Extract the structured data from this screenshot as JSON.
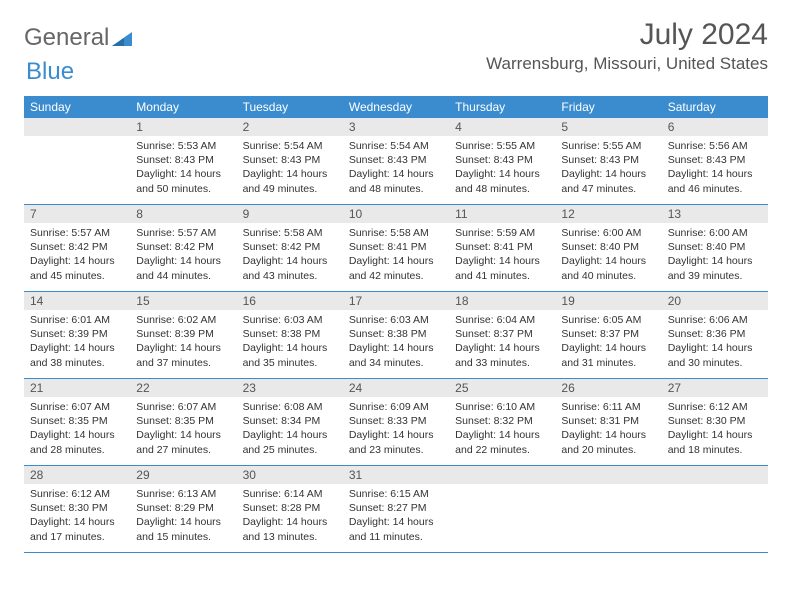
{
  "brand": {
    "part1": "General",
    "part2": "Blue"
  },
  "title": "July 2024",
  "location": "Warrensburg, Missouri, United States",
  "colors": {
    "accent": "#3a8ccf",
    "header_text": "#ffffff",
    "date_bar_bg": "#e9e9e9",
    "body_text": "#333333",
    "title_text": "#555555"
  },
  "day_names": [
    "Sunday",
    "Monday",
    "Tuesday",
    "Wednesday",
    "Thursday",
    "Friday",
    "Saturday"
  ],
  "weeks": [
    [
      null,
      {
        "d": "1",
        "sr": "5:53 AM",
        "ss": "8:43 PM",
        "dh": "14",
        "dm": "50"
      },
      {
        "d": "2",
        "sr": "5:54 AM",
        "ss": "8:43 PM",
        "dh": "14",
        "dm": "49"
      },
      {
        "d": "3",
        "sr": "5:54 AM",
        "ss": "8:43 PM",
        "dh": "14",
        "dm": "48"
      },
      {
        "d": "4",
        "sr": "5:55 AM",
        "ss": "8:43 PM",
        "dh": "14",
        "dm": "48"
      },
      {
        "d": "5",
        "sr": "5:55 AM",
        "ss": "8:43 PM",
        "dh": "14",
        "dm": "47"
      },
      {
        "d": "6",
        "sr": "5:56 AM",
        "ss": "8:43 PM",
        "dh": "14",
        "dm": "46"
      }
    ],
    [
      {
        "d": "7",
        "sr": "5:57 AM",
        "ss": "8:42 PM",
        "dh": "14",
        "dm": "45"
      },
      {
        "d": "8",
        "sr": "5:57 AM",
        "ss": "8:42 PM",
        "dh": "14",
        "dm": "44"
      },
      {
        "d": "9",
        "sr": "5:58 AM",
        "ss": "8:42 PM",
        "dh": "14",
        "dm": "43"
      },
      {
        "d": "10",
        "sr": "5:58 AM",
        "ss": "8:41 PM",
        "dh": "14",
        "dm": "42"
      },
      {
        "d": "11",
        "sr": "5:59 AM",
        "ss": "8:41 PM",
        "dh": "14",
        "dm": "41"
      },
      {
        "d": "12",
        "sr": "6:00 AM",
        "ss": "8:40 PM",
        "dh": "14",
        "dm": "40"
      },
      {
        "d": "13",
        "sr": "6:00 AM",
        "ss": "8:40 PM",
        "dh": "14",
        "dm": "39"
      }
    ],
    [
      {
        "d": "14",
        "sr": "6:01 AM",
        "ss": "8:39 PM",
        "dh": "14",
        "dm": "38"
      },
      {
        "d": "15",
        "sr": "6:02 AM",
        "ss": "8:39 PM",
        "dh": "14",
        "dm": "37"
      },
      {
        "d": "16",
        "sr": "6:03 AM",
        "ss": "8:38 PM",
        "dh": "14",
        "dm": "35"
      },
      {
        "d": "17",
        "sr": "6:03 AM",
        "ss": "8:38 PM",
        "dh": "14",
        "dm": "34"
      },
      {
        "d": "18",
        "sr": "6:04 AM",
        "ss": "8:37 PM",
        "dh": "14",
        "dm": "33"
      },
      {
        "d": "19",
        "sr": "6:05 AM",
        "ss": "8:37 PM",
        "dh": "14",
        "dm": "31"
      },
      {
        "d": "20",
        "sr": "6:06 AM",
        "ss": "8:36 PM",
        "dh": "14",
        "dm": "30"
      }
    ],
    [
      {
        "d": "21",
        "sr": "6:07 AM",
        "ss": "8:35 PM",
        "dh": "14",
        "dm": "28"
      },
      {
        "d": "22",
        "sr": "6:07 AM",
        "ss": "8:35 PM",
        "dh": "14",
        "dm": "27"
      },
      {
        "d": "23",
        "sr": "6:08 AM",
        "ss": "8:34 PM",
        "dh": "14",
        "dm": "25"
      },
      {
        "d": "24",
        "sr": "6:09 AM",
        "ss": "8:33 PM",
        "dh": "14",
        "dm": "23"
      },
      {
        "d": "25",
        "sr": "6:10 AM",
        "ss": "8:32 PM",
        "dh": "14",
        "dm": "22"
      },
      {
        "d": "26",
        "sr": "6:11 AM",
        "ss": "8:31 PM",
        "dh": "14",
        "dm": "20"
      },
      {
        "d": "27",
        "sr": "6:12 AM",
        "ss": "8:30 PM",
        "dh": "14",
        "dm": "18"
      }
    ],
    [
      {
        "d": "28",
        "sr": "6:12 AM",
        "ss": "8:30 PM",
        "dh": "14",
        "dm": "17"
      },
      {
        "d": "29",
        "sr": "6:13 AM",
        "ss": "8:29 PM",
        "dh": "14",
        "dm": "15"
      },
      {
        "d": "30",
        "sr": "6:14 AM",
        "ss": "8:28 PM",
        "dh": "14",
        "dm": "13"
      },
      {
        "d": "31",
        "sr": "6:15 AM",
        "ss": "8:27 PM",
        "dh": "14",
        "dm": "11"
      },
      null,
      null,
      null
    ]
  ],
  "labels": {
    "sunrise": "Sunrise: ",
    "sunset": "Sunset: ",
    "daylight_prefix": "Daylight: ",
    "hours_word": " hours",
    "and_word": "and ",
    "minutes_word": " minutes."
  }
}
